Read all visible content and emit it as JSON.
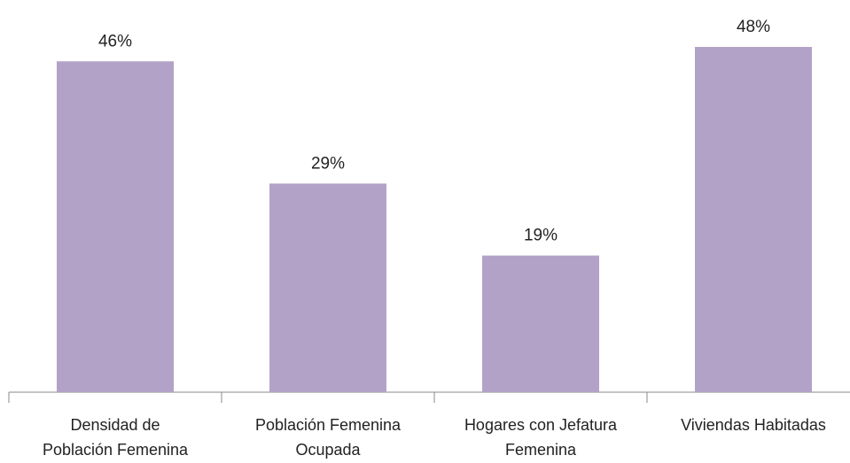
{
  "chart_data": {
    "type": "bar",
    "categories": [
      "Densidad de\nPoblación Femenina",
      "Población Femenina\nOcupada",
      "Hogares con Jefatura\nFemenina",
      "Viviendas Habitadas"
    ],
    "values": [
      46,
      29,
      19,
      48
    ],
    "value_labels": [
      "46%",
      "29%",
      "19%",
      "48%"
    ],
    "color": "#b3a2c7"
  }
}
